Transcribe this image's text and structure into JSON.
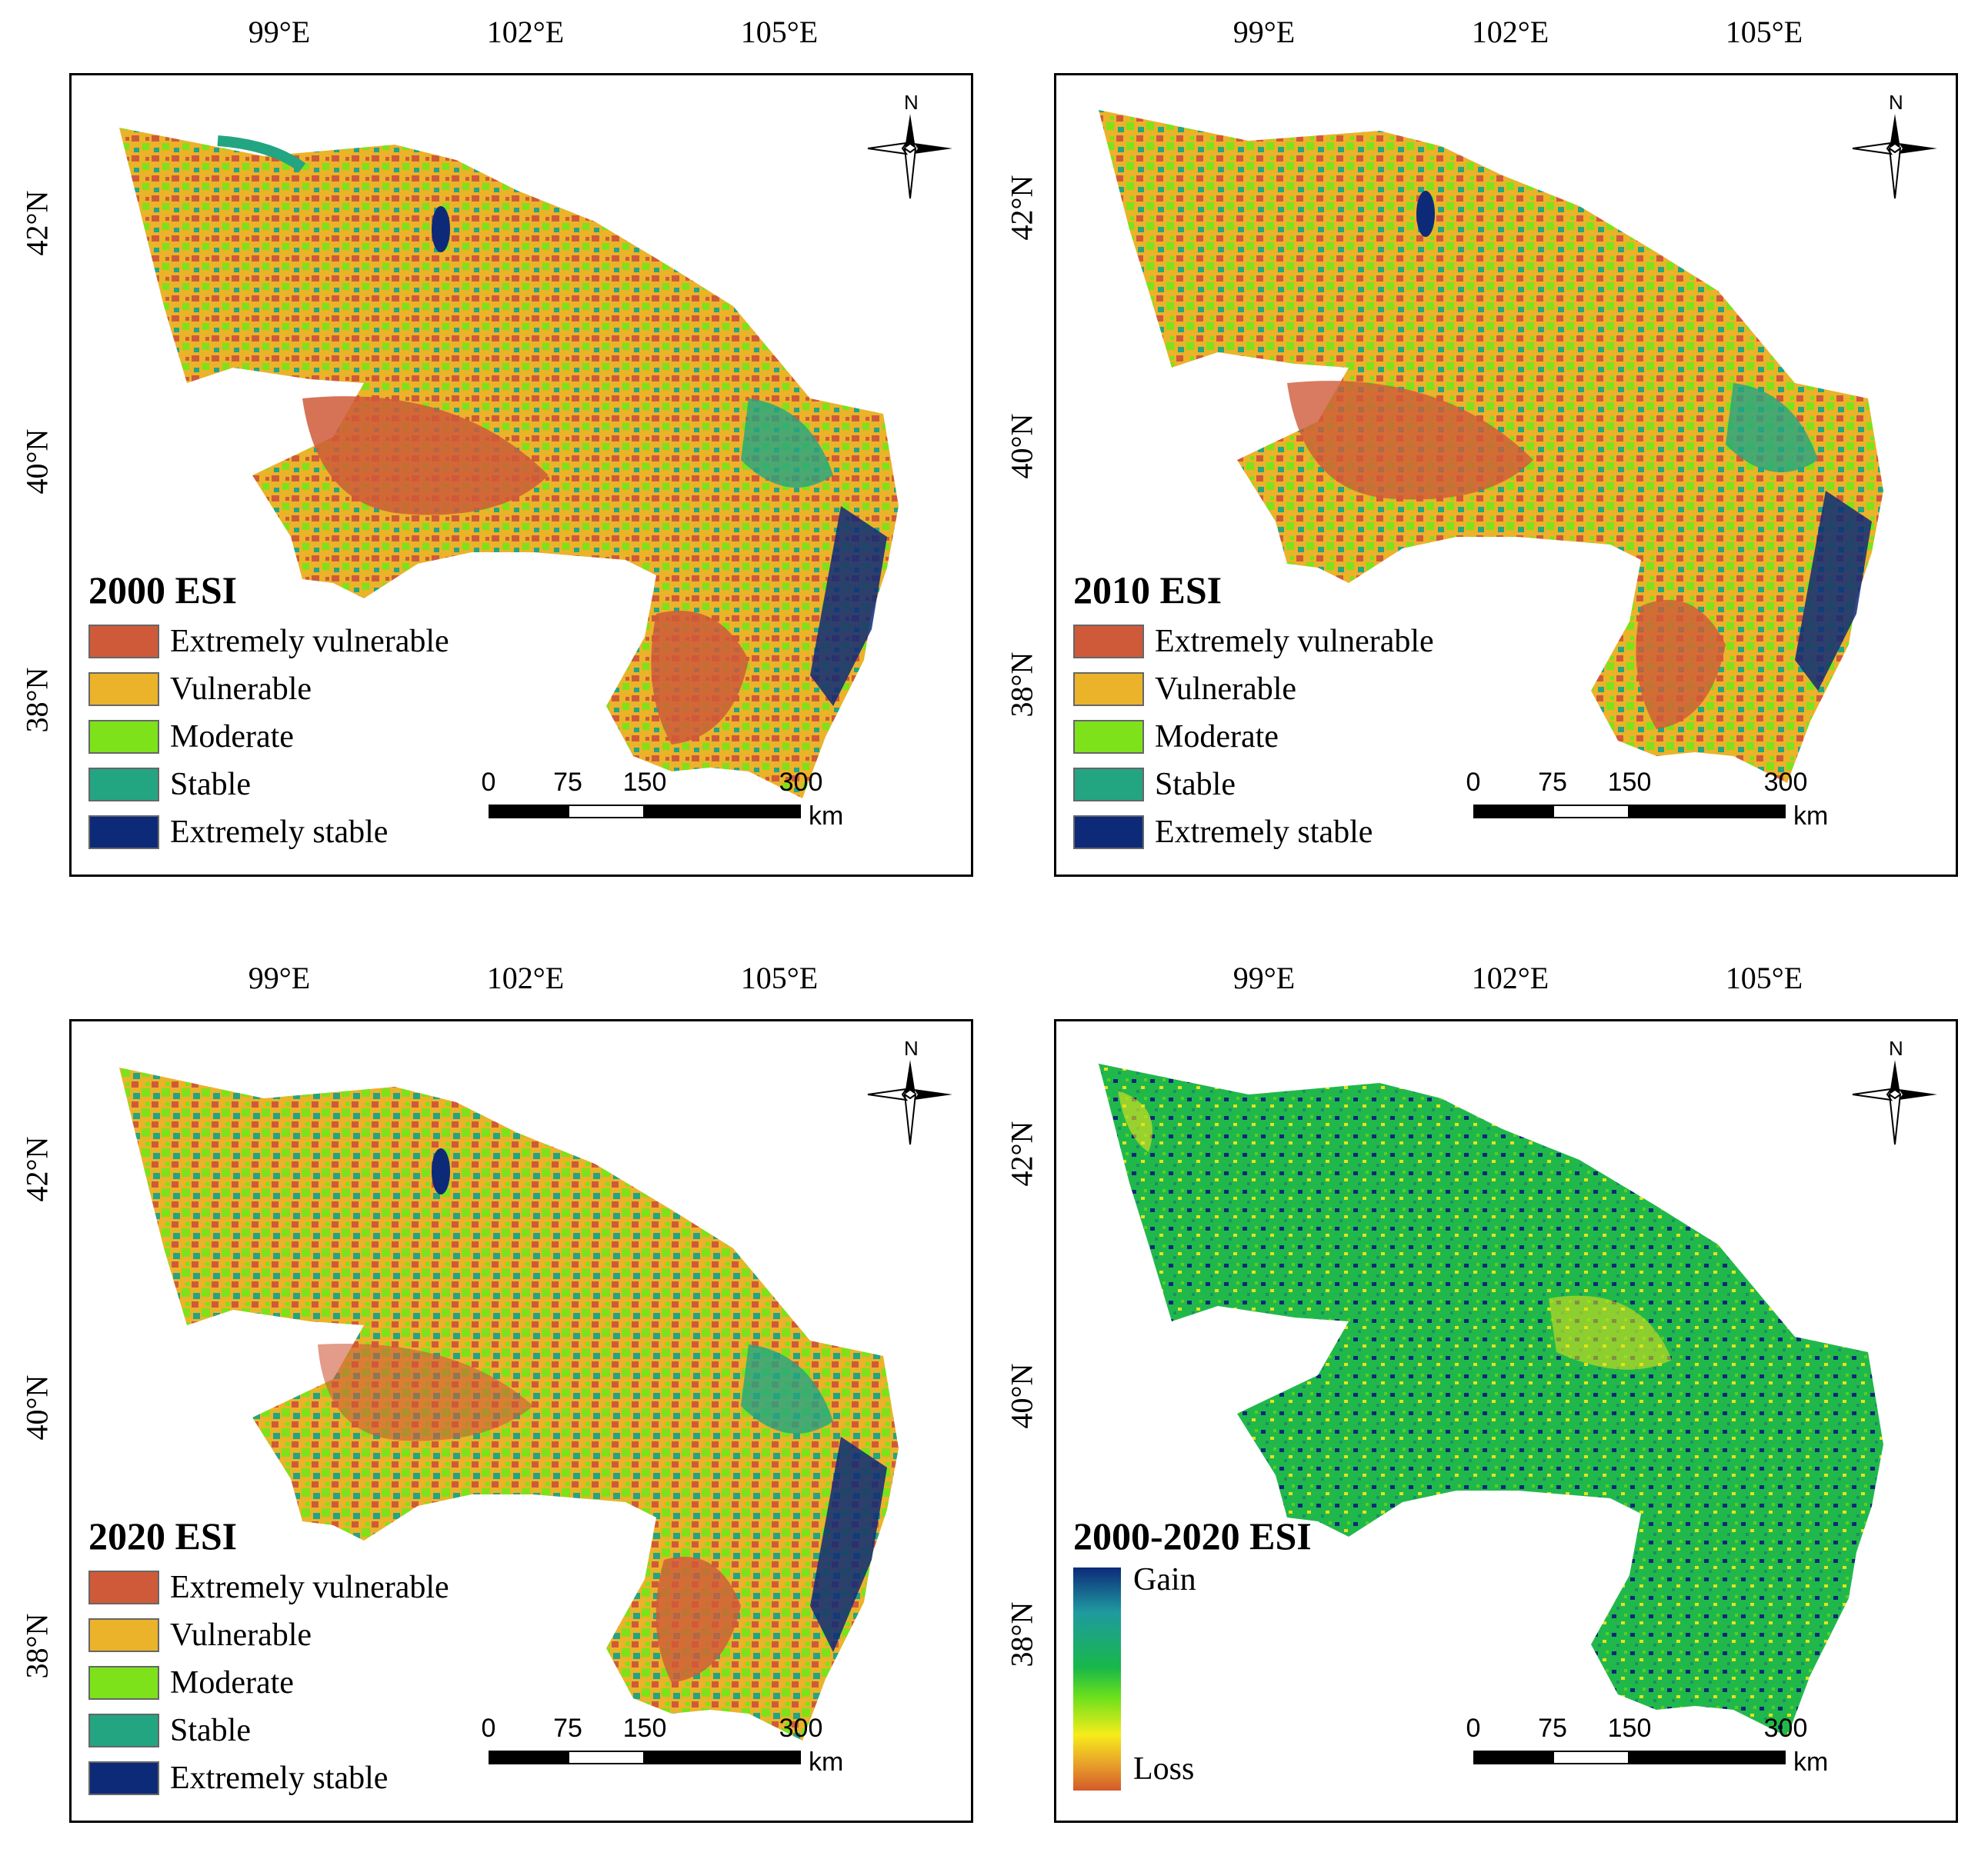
{
  "lon_labels": [
    "99°E",
    "102°E",
    "105°E"
  ],
  "lat_labels": [
    "42°N",
    "40°N",
    "38°N"
  ],
  "north_label": "N",
  "scale": {
    "ticks": [
      "0",
      "75",
      "150",
      "300"
    ],
    "unit": "km"
  },
  "category_legend": [
    {
      "label": "Extremely vulnerable",
      "color": "#cf5a3a"
    },
    {
      "label": "Vulnerable",
      "color": "#eab329"
    },
    {
      "label": "Moderate",
      "color": "#7de21a"
    },
    {
      "label": "Stable",
      "color": "#23a582"
    },
    {
      "label": "Extremely stable",
      "color": "#0d2a78"
    }
  ],
  "panels": [
    {
      "title": "2000  ESI",
      "type": "category"
    },
    {
      "title": "2010  ESI",
      "type": "category"
    },
    {
      "title": "2020  ESI",
      "type": "category"
    },
    {
      "title": "2000-2020  ESI",
      "type": "change",
      "gain_label": "Gain",
      "loss_label": "Loss"
    }
  ]
}
